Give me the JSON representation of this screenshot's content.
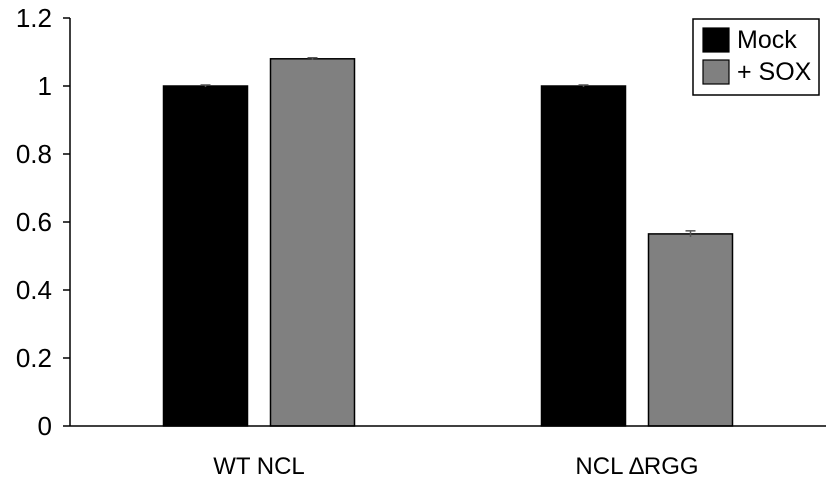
{
  "chart_data": {
    "type": "bar",
    "categories": [
      "WT NCL",
      "NCL ∆RGG"
    ],
    "series": [
      {
        "name": "Mock",
        "values": [
          1.0,
          1.0
        ],
        "errors": [
          0.003,
          0.003
        ],
        "color": "#000000"
      },
      {
        "name": "+ SOX",
        "values": [
          1.08,
          0.565
        ],
        "errors": [
          0.003,
          0.009
        ],
        "color": "#808080"
      }
    ],
    "ylim": [
      0,
      1.2
    ],
    "yticks": [
      0,
      0.2,
      0.4,
      0.6,
      0.8,
      1,
      1.2
    ],
    "ytick_labels": [
      "0",
      "0.2",
      "0.4",
      "0.6",
      "0.8",
      "1",
      "1.2"
    ],
    "grid": false,
    "legend_position": "top-right",
    "title": "",
    "xlabel": "",
    "ylabel": ""
  }
}
